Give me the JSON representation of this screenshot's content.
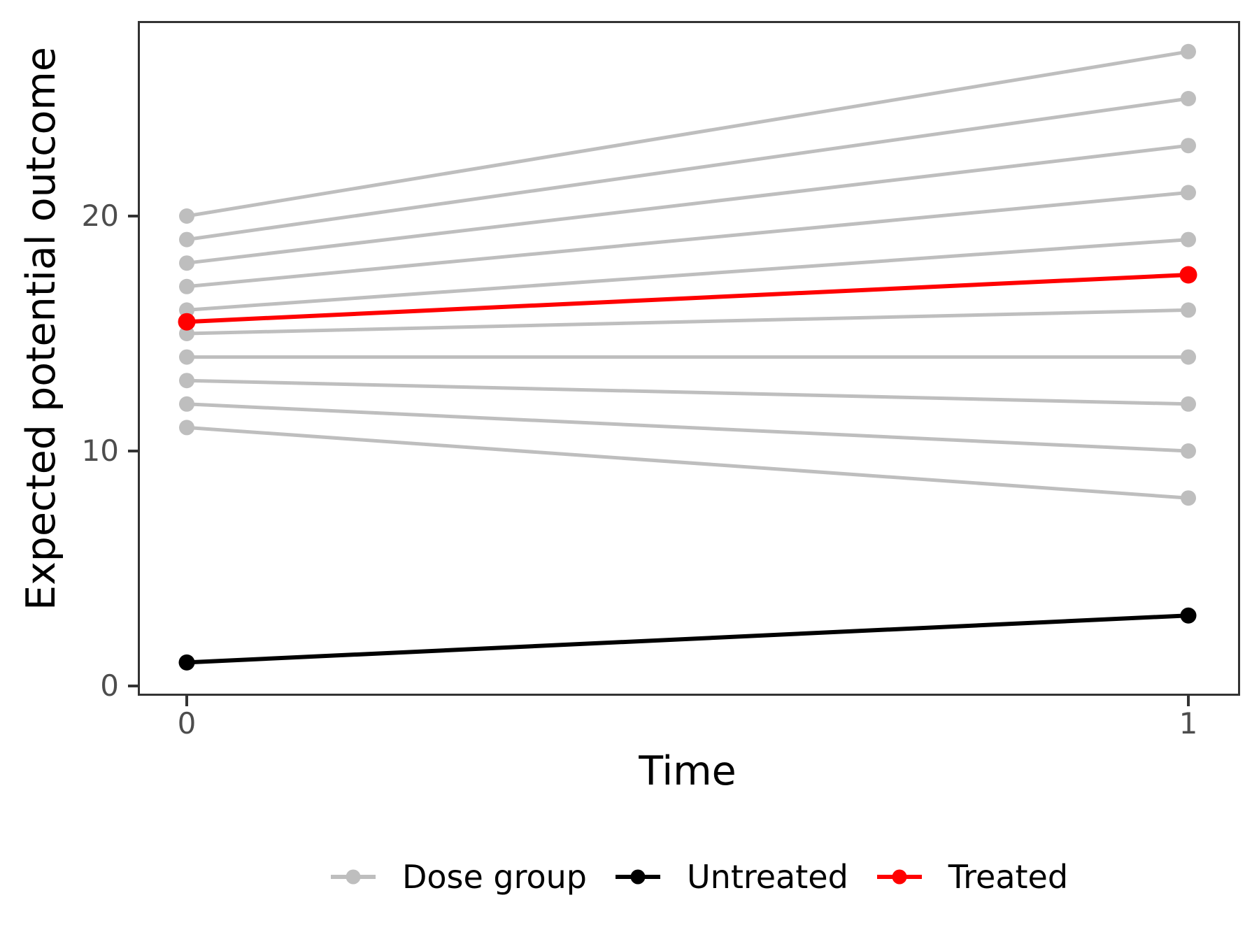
{
  "chart_data": {
    "type": "line",
    "title": "",
    "xlabel": "Time",
    "ylabel": "Expected potential outcome",
    "x": [
      0,
      1
    ],
    "xlim": [
      -0.047,
      1.05
    ],
    "ylim": [
      -0.35,
      28.2
    ],
    "grid": false,
    "axes": {
      "x": {
        "ticks": [
          {
            "value": 0,
            "label": "0"
          },
          {
            "value": 1,
            "label": "1"
          }
        ]
      },
      "y": {
        "ticks": [
          {
            "value": 0,
            "label": "0"
          },
          {
            "value": 10,
            "label": "10"
          },
          {
            "value": 20,
            "label": "20"
          }
        ]
      }
    },
    "series": [
      {
        "name": "Dose group",
        "color": "#BEBEBE",
        "lines": [
          {
            "x": [
              0,
              1
            ],
            "y": [
              20,
              27
            ]
          },
          {
            "x": [
              0,
              1
            ],
            "y": [
              19,
              25
            ]
          },
          {
            "x": [
              0,
              1
            ],
            "y": [
              18,
              23
            ]
          },
          {
            "x": [
              0,
              1
            ],
            "y": [
              17,
              21
            ]
          },
          {
            "x": [
              0,
              1
            ],
            "y": [
              16,
              19
            ]
          },
          {
            "x": [
              0,
              1
            ],
            "y": [
              15,
              16
            ]
          },
          {
            "x": [
              0,
              1
            ],
            "y": [
              14,
              14
            ]
          },
          {
            "x": [
              0,
              1
            ],
            "y": [
              13,
              12
            ]
          },
          {
            "x": [
              0,
              1
            ],
            "y": [
              12,
              10
            ]
          },
          {
            "x": [
              0,
              1
            ],
            "y": [
              11,
              8
            ]
          }
        ]
      },
      {
        "name": "Untreated",
        "color": "#000000",
        "lines": [
          {
            "x": [
              0,
              1
            ],
            "y": [
              1,
              3
            ]
          }
        ]
      },
      {
        "name": "Treated",
        "color": "#FF0000",
        "lines": [
          {
            "x": [
              0,
              1
            ],
            "y": [
              15.5,
              17.5
            ]
          }
        ]
      }
    ],
    "legend": {
      "position": "bottom",
      "entries": [
        {
          "label": "Dose group",
          "color": "#BEBEBE"
        },
        {
          "label": "Untreated",
          "color": "#000000"
        },
        {
          "label": "Treated",
          "color": "#FF0000"
        }
      ]
    },
    "colors": {
      "axis_line": "#333333",
      "tick_text": "#4d4d4d",
      "title_text": "#000000"
    }
  }
}
